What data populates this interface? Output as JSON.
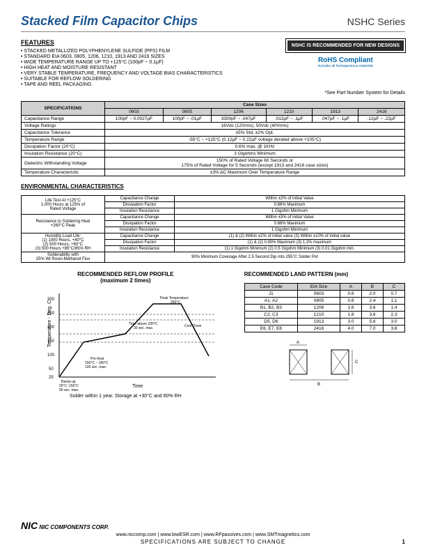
{
  "header": {
    "title": "Stacked Film Capacitor Chips",
    "series": "NSHC Series"
  },
  "features": {
    "heading": "FEATURES",
    "items": [
      "• STACKED METALLIZED POLYPHENYLENE SULFIDE (PPS) FILM",
      "• STANDARD EIA 0603, 0805, 1206, 1210, 1913 AND 2416 SIZES",
      "• WIDE TEMPERATURE RANGE UP TO +125°C (100pF ~ 0.1µF)",
      "• HIGH HEAT AND MOISTURE RESISTANT",
      "• VERY STABLE TEMPERATURE, FREQUENCY AND VOLTAGE BIAS CHARACTERISTICS",
      "• SUITABLE FOR REFLOW SOLDERING",
      "• TAPE AND REEL PACKAGING"
    ]
  },
  "callout": {
    "rec": "NSHC IS RECOMMENDED FOR NEW DESIGNS",
    "rohs": "RoHS Compliant",
    "rohs_sub": "includes all homogeneous materials",
    "note": "*See Part Number System for Details"
  },
  "spec_table": {
    "title": "SPECIFICATIONS",
    "case_sizes_header": "Case Sizes",
    "sizes": [
      "0603",
      "0805",
      "1206",
      "1210",
      "1913",
      "2416"
    ],
    "rows": [
      {
        "label": "Capacitance Range",
        "cells": [
          "100pF ~ 0.0027µF",
          "100pF ~ .01µF",
          "3300pF ~ .047µF",
          ".012µF ~ .1µF",
          ".047µF ~ .1µF",
          ".12µF ~ .22µF"
        ]
      },
      {
        "label": "Voltage Ratings",
        "span": "16Vdc (12Vrms), 50Vdc (40Vrms)"
      },
      {
        "label": "Capacitance Tolerance",
        "span": "±5% Std, ±2% Opt."
      },
      {
        "label": "Temperature Range",
        "span": "-55°C ~ +125°C (0.12µF ~ 0.22µF voltage derated above +105°C)"
      },
      {
        "label": "Dissipation Factor (20°C)",
        "span": "0.6% max. @ 1KHz"
      },
      {
        "label": "Insulation Resistance (20°C)",
        "span": "3 Gigohms Minimum"
      },
      {
        "label": "Dielectric Withstanding Voltage",
        "span": "150% of Rated Voltage 60 Seconds or\n175% of Rated Voltage for 5 Seconds (except 1913 and 2416 case sizes)"
      },
      {
        "label": "Temperature Characteristic",
        "span": "±3% ΔC Maximum Over Temperature Range"
      }
    ]
  },
  "env": {
    "title": "ENVIRONMENTAL CHARACTERISTICS",
    "rows": [
      {
        "g": "Life Test At +125°C\n1,000 Hours at 125% of\nRated Voltage",
        "p": "Capacitance Change",
        "v": "Within ±2% of Initial Value"
      },
      {
        "g": "",
        "p": "Dissipation Factor",
        "v": "0.66% Maximum"
      },
      {
        "g": "",
        "p": "Insulation Resistance",
        "v": "1 Gigohm Minimum"
      },
      {
        "g": "Resistance to Soldering Heat\n+260°C Peak",
        "p": "Capacitance Change",
        "v": "Within ±3% of Initial Value"
      },
      {
        "g": "",
        "p": "Dissipation Factor",
        "v": "0.66% Maximum"
      },
      {
        "g": "",
        "p": "Insulation Resistance",
        "v": "1 Gigohm Minimum"
      },
      {
        "g": "Humidity Load Life:\n(1) 1000 Hours, +40°C\n(2) 500 Hours, +60°C\n(3) 500 Hours +85°C/85% RH",
        "p": "Capacitance Change",
        "v": "(1) & (2) Within ±2% of initial value (3) Within ±10% of initial value"
      },
      {
        "g": "",
        "p": "Dissipation Factor",
        "v": "(1) & (2) 0.90% Maximum (3) 1.2% maximum"
      },
      {
        "g": "",
        "p": "Insulation Resistance",
        "v": "(1) 1 Gigohm Minimum (2) 0.5 Gigohm Minimum (3) 0.01 Gigohm min."
      },
      {
        "g": "Solderability with\n25% Wt Rosin-Methanol Flux",
        "p": "",
        "v": "90% Minimum Coverage After 2.5 Second Dip into 255°C Solder Pot"
      }
    ]
  },
  "reflow": {
    "title": "RECOMMENDED REFLOW PROFILE",
    "subtitle": "(maximum 2 times)",
    "ylabel": "Temperature - Deg. C",
    "xlabel": "Time",
    "yticks": [
      "25",
      "50",
      "100",
      "150",
      "200",
      "250",
      "300"
    ],
    "labels": {
      "peak": "Peak Temperature\n260°C",
      "cooldown": "Cool Down",
      "above": "Time above 230°C\n30 sec. max.",
      "preheat": "Pre-heat\n150°C ~ 180°C\n120 sec. max.",
      "ramp": "Ramp-up\n25°C ~ 150°C\n90 sec. max."
    },
    "footer": "Solder within 1 year. Storage at +30°C and 60% RH"
  },
  "land": {
    "title": "RECOMMENDED LAND PATTERN (mm)",
    "headers": [
      "Case Code",
      "EIA Size",
      "A",
      "B",
      "C"
    ],
    "rows": [
      [
        "J1",
        "0603",
        "0.6",
        "2.0",
        "0.7"
      ],
      [
        "A1, A2",
        "0805",
        "0.8",
        "2.4",
        "1.1"
      ],
      [
        "B1, B2, B3",
        "1206",
        "1.6",
        "3.6",
        "1.4"
      ],
      [
        "C2, C3",
        "1210",
        "1.8",
        "3.6",
        "2.3"
      ],
      [
        "D5, D6",
        "1913",
        "3.0",
        "5.6",
        "3.0"
      ],
      [
        "E6, E7, E8",
        "2416",
        "4.0",
        "7.0",
        "3.8"
      ]
    ]
  },
  "footer": {
    "brand": "NIC COMPONENTS CORP.",
    "links": "www.niccomp.com   |   www.lowESR.com   |   www.RFpassives.com   |   www.SMTmagnetics.com",
    "spec": "SPECIFICATIONS ARE SUBJECT TO CHANGE",
    "page": "1"
  }
}
